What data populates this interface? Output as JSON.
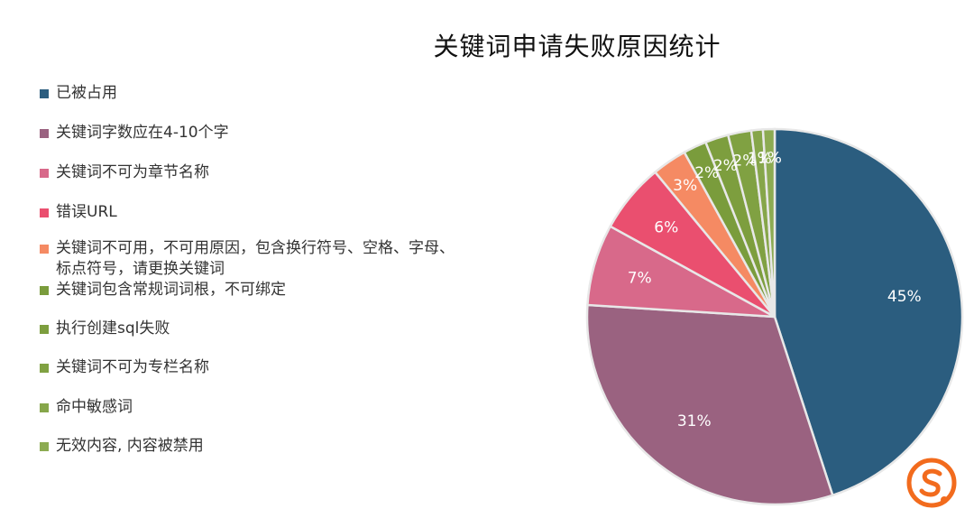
{
  "chart_data": {
    "type": "pie",
    "title": "关键词申请失败原因统计",
    "legend_position": "left",
    "slices": [
      {
        "label": "已被占用",
        "value": 45,
        "value_label": "45%",
        "color": "#2b5d7f"
      },
      {
        "label": "关键词字数应在4-10个字",
        "value": 31,
        "value_label": "31%",
        "color": "#9a6280"
      },
      {
        "label": "关键词不可为章节名称",
        "value": 7,
        "value_label": "7%",
        "color": "#d8698a"
      },
      {
        "label": "错误URL",
        "value": 6,
        "value_label": "6%",
        "color": "#ea4f6f"
      },
      {
        "label": "关键词不可用，不可用原因，包含换行符号、空格、字母、\n标点符号，请更换关键词",
        "value": 3,
        "value_label": "3%",
        "color": "#f58a63"
      },
      {
        "label": "关键词包含常规词词根，不可绑定",
        "value": 2,
        "value_label": "2%",
        "color": "#7a9c3c"
      },
      {
        "label": "执行创建sql失败",
        "value": 2,
        "value_label": "2%",
        "color": "#7d9e3e"
      },
      {
        "label": "关键词不可为专栏名称",
        "value": 2,
        "value_label": "2%",
        "color": "#80a142"
      },
      {
        "label": "命中敏感词",
        "value": 1,
        "value_label": "1%",
        "color": "#86a64a"
      },
      {
        "label": "无效内容, 内容被禁用",
        "value": 1,
        "value_label": "1%",
        "color": "#8cab52"
      }
    ]
  },
  "logo": {
    "name": "brand-s-logo",
    "color": "#f26b1d"
  }
}
